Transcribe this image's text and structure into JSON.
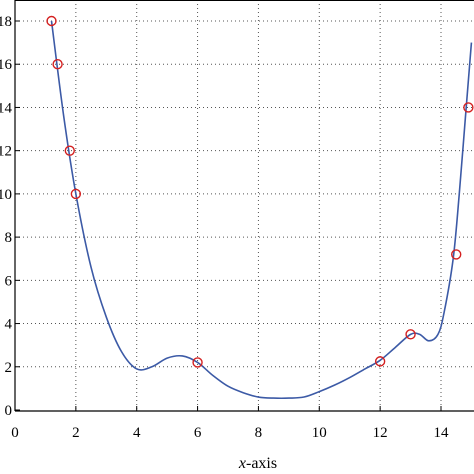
{
  "chart_data": {
    "type": "line",
    "xlabel_italic": "x",
    "xlabel_rest": "-axis",
    "xlim": [
      0,
      15
    ],
    "ylim": [
      0,
      18
    ],
    "x_ticks": [
      "0",
      "2",
      "4",
      "6",
      "8",
      "10",
      "12",
      "14"
    ],
    "y_ticks": [
      "0",
      "2",
      "4",
      "6",
      "8",
      "10",
      "12",
      "14",
      "16",
      "18"
    ],
    "grid": true,
    "series": [
      {
        "kind": "curve",
        "color": "#3c5aa6",
        "x": [
          1.2,
          1.6,
          2.0,
          2.5,
          3.0,
          3.5,
          4.0,
          4.5,
          5.0,
          5.5,
          6.0,
          6.5,
          7.0,
          7.5,
          8.0,
          8.5,
          9.0,
          9.5,
          10.0,
          10.5,
          11.0,
          11.5,
          12.0,
          12.5,
          13.0,
          13.3,
          13.6,
          13.9,
          14.1,
          14.4,
          14.6,
          14.8,
          15.0
        ],
        "y": [
          18.0,
          13.6,
          10.0,
          6.6,
          4.3,
          2.7,
          1.9,
          2.0,
          2.4,
          2.5,
          2.2,
          1.6,
          1.1,
          0.8,
          0.6,
          0.55,
          0.55,
          0.6,
          0.85,
          1.15,
          1.5,
          1.9,
          2.3,
          2.9,
          3.5,
          3.5,
          3.2,
          3.5,
          4.5,
          7.0,
          10.0,
          13.5,
          17.0
        ]
      },
      {
        "kind": "markers",
        "color": "#d42020",
        "x": [
          1.2,
          1.4,
          1.8,
          2.0,
          6.0,
          12.0,
          13.0,
          14.5,
          14.9
        ],
        "y": [
          18.0,
          16.0,
          12.0,
          10.0,
          2.2,
          2.25,
          3.5,
          7.2,
          14.0
        ]
      }
    ]
  }
}
